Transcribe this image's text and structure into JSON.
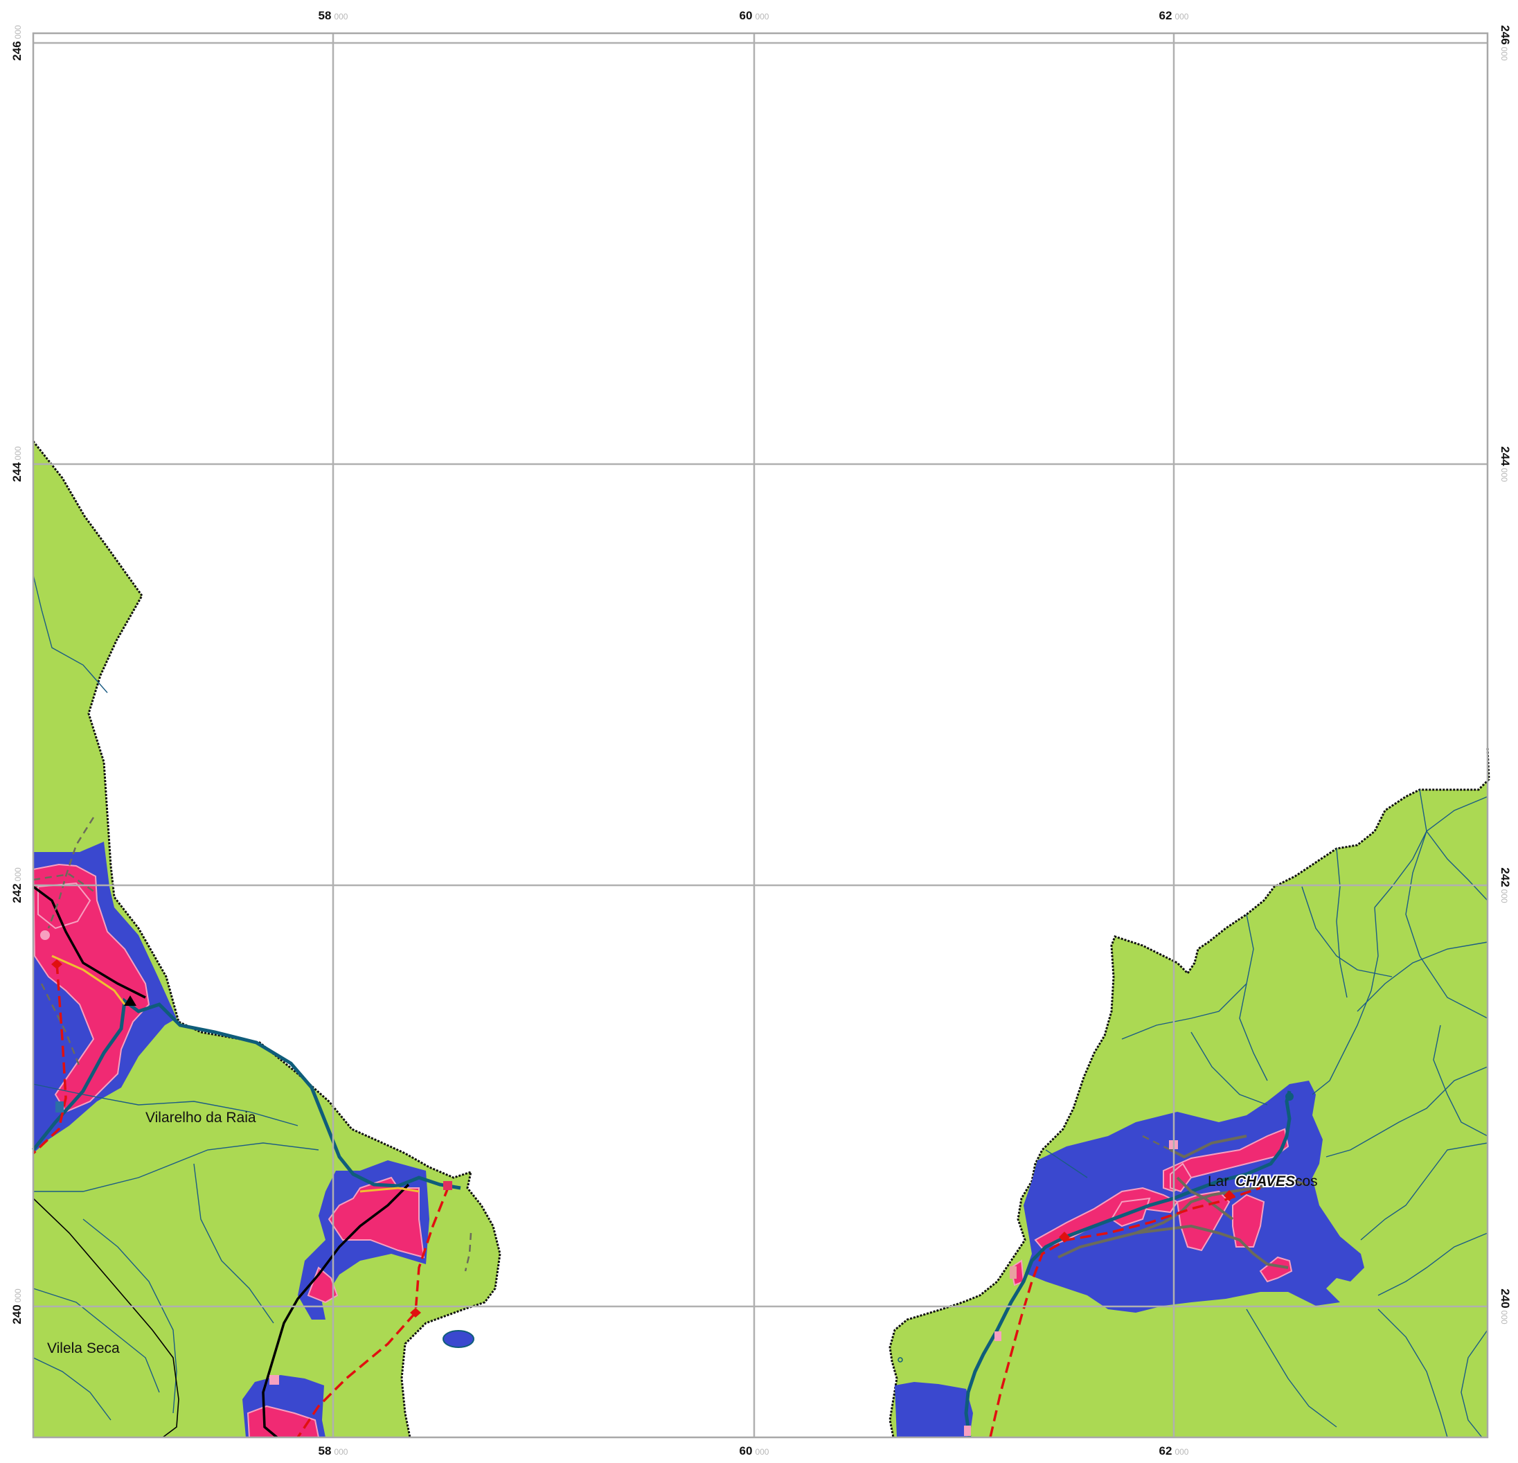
{
  "map": {
    "x_axis": {
      "ticks": [
        {
          "main": "58",
          "sub": "000"
        },
        {
          "main": "60",
          "sub": "000"
        },
        {
          "main": "62",
          "sub": "000"
        }
      ]
    },
    "y_axis": {
      "ticks": [
        {
          "main": "246",
          "sub": "000"
        },
        {
          "main": "244",
          "sub": "000"
        },
        {
          "main": "242",
          "sub": "000"
        },
        {
          "main": "240",
          "sub": "000"
        }
      ]
    },
    "places": {
      "vilarelho": "Vilarelho da Raia",
      "vilela": "Vilela Seca",
      "lamadarcos_left": "Lar",
      "lamadarcos_right": "cos",
      "chaves": "CHAVES"
    },
    "colors": {
      "terrain": "#abd953",
      "zone": "#3a48cf",
      "urban": "#f02a73",
      "river": "#0f5d7a",
      "boundary": "#111111",
      "dashed_route": "#e01010",
      "grid": "#b0b0b0"
    }
  }
}
